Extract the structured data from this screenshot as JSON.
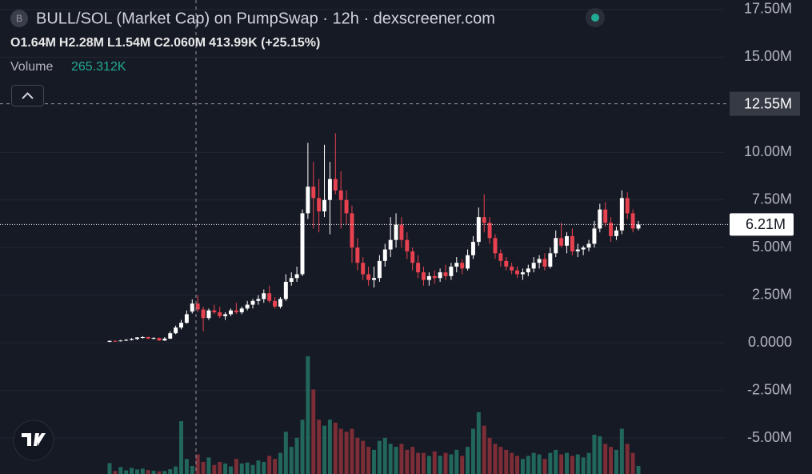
{
  "chart_data": {
    "type": "candlestick",
    "header": {
      "icon": "B",
      "title": "BULL/SOL (Market Cap) on PumpSwap · 12h · dexscreener.com",
      "ohlc": [
        {
          "key": "O",
          "value": "1.64M"
        },
        {
          "key": "H",
          "value": "2.28M"
        },
        {
          "key": "L",
          "value": "1.54M"
        },
        {
          "key": "C",
          "value": "2.060M"
        }
      ],
      "change": "413.99K (+25.15%)",
      "volume_label": "Volume",
      "volume_value": "265.312K"
    },
    "ylim": [
      -6.89,
      18.0
    ],
    "yticks": [
      {
        "value": 17.5,
        "label": "17.50M"
      },
      {
        "value": 15,
        "label": "15.00M"
      },
      {
        "value": 10,
        "label": "10.00M"
      },
      {
        "value": 7.5,
        "label": "7.50M"
      },
      {
        "value": 5,
        "label": "5.00M"
      },
      {
        "value": 2.5,
        "label": "2.50M"
      },
      {
        "value": 0,
        "label": "0.0000"
      },
      {
        "value": -2.5,
        "label": "-2.50M"
      },
      {
        "value": -5,
        "label": "-5.00M"
      }
    ],
    "grid": true,
    "crosshair": {
      "value": 12.55,
      "label": "12.55M"
    },
    "last_price": {
      "value": 6.21,
      "label": "6.21M"
    },
    "up_color": "#ffffff",
    "down_color": "#e8414f",
    "volume_up_color": "#22675b",
    "volume_down_color": "#7c2d36",
    "ohlc": [
      [
        0.05,
        0.12,
        0.03,
        0.1
      ],
      [
        0.1,
        0.13,
        0.06,
        0.08
      ],
      [
        0.08,
        0.15,
        0.07,
        0.12
      ],
      [
        0.12,
        0.2,
        0.1,
        0.15
      ],
      [
        0.15,
        0.25,
        0.12,
        0.2
      ],
      [
        0.2,
        0.3,
        0.15,
        0.28
      ],
      [
        0.28,
        0.35,
        0.22,
        0.3
      ],
      [
        0.3,
        0.32,
        0.2,
        0.22
      ],
      [
        0.22,
        0.3,
        0.18,
        0.25
      ],
      [
        0.25,
        0.28,
        0.1,
        0.12
      ],
      [
        0.12,
        0.3,
        0.1,
        0.22
      ],
      [
        0.22,
        0.6,
        0.2,
        0.5
      ],
      [
        0.5,
        0.9,
        0.45,
        0.8
      ],
      [
        0.8,
        1.2,
        0.7,
        1.05
      ],
      [
        1.05,
        1.7,
        1.0,
        1.5
      ],
      [
        1.64,
        2.28,
        1.54,
        2.06
      ],
      [
        2.06,
        2.5,
        1.6,
        1.75
      ],
      [
        1.75,
        1.9,
        0.6,
        1.3
      ],
      [
        1.3,
        1.8,
        1.2,
        1.7
      ],
      [
        1.7,
        2.0,
        1.5,
        1.6
      ],
      [
        1.6,
        1.9,
        1.3,
        1.4
      ],
      [
        1.4,
        1.6,
        1.2,
        1.5
      ],
      [
        1.5,
        1.8,
        1.4,
        1.7
      ],
      [
        1.7,
        2.1,
        1.5,
        1.6
      ],
      [
        1.6,
        1.9,
        1.5,
        1.8
      ],
      [
        1.8,
        2.2,
        1.7,
        2.0
      ],
      [
        2.0,
        2.3,
        1.8,
        2.2
      ],
      [
        2.2,
        2.5,
        2.0,
        2.3
      ],
      [
        2.3,
        2.8,
        2.1,
        2.6
      ],
      [
        2.6,
        3.0,
        2.1,
        2.2
      ],
      [
        2.2,
        2.4,
        1.8,
        1.9
      ],
      [
        1.9,
        2.4,
        1.8,
        2.3
      ],
      [
        2.3,
        3.6,
        2.2,
        3.2
      ],
      [
        3.2,
        3.7,
        3.0,
        3.4
      ],
      [
        3.4,
        4.0,
        3.2,
        3.6
      ],
      [
        3.6,
        7.0,
        3.5,
        6.8
      ],
      [
        6.8,
        10.5,
        6.5,
        8.2
      ],
      [
        8.2,
        9.5,
        6.0,
        7.6
      ],
      [
        7.6,
        8.6,
        5.8,
        6.9
      ],
      [
        6.9,
        10.4,
        6.6,
        7.5
      ],
      [
        7.5,
        9.5,
        5.7,
        8.6
      ],
      [
        8.6,
        11.0,
        7.8,
        8.0
      ],
      [
        8.0,
        9.0,
        6.0,
        7.5
      ],
      [
        7.5,
        8.0,
        6.2,
        6.8
      ],
      [
        6.8,
        7.2,
        4.2,
        5.0
      ],
      [
        5.0,
        5.5,
        3.8,
        4.2
      ],
      [
        4.2,
        4.5,
        3.3,
        3.6
      ],
      [
        3.6,
        4.0,
        3.0,
        3.3
      ],
      [
        3.3,
        4.0,
        2.9,
        3.4
      ],
      [
        3.4,
        4.6,
        3.2,
        4.3
      ],
      [
        4.3,
        5.2,
        4.0,
        4.9
      ],
      [
        4.9,
        6.6,
        4.5,
        5.4
      ],
      [
        5.4,
        6.8,
        5.0,
        6.2
      ],
      [
        6.2,
        6.6,
        5.0,
        5.4
      ],
      [
        5.4,
        5.8,
        4.4,
        4.8
      ],
      [
        4.8,
        5.0,
        3.8,
        4.2
      ],
      [
        4.2,
        4.6,
        3.4,
        3.7
      ],
      [
        3.7,
        4.0,
        3.0,
        3.3
      ],
      [
        3.3,
        3.7,
        3.0,
        3.5
      ],
      [
        3.5,
        3.8,
        3.1,
        3.4
      ],
      [
        3.4,
        3.9,
        3.2,
        3.7
      ],
      [
        3.7,
        4.1,
        3.3,
        3.5
      ],
      [
        3.5,
        4.2,
        3.3,
        4.0
      ],
      [
        4.0,
        4.5,
        3.7,
        4.2
      ],
      [
        4.2,
        4.4,
        3.6,
        3.9
      ],
      [
        3.9,
        4.9,
        3.8,
        4.6
      ],
      [
        4.6,
        5.6,
        4.4,
        5.3
      ],
      [
        5.3,
        7.1,
        5.1,
        6.6
      ],
      [
        6.6,
        7.8,
        5.8,
        6.3
      ],
      [
        6.3,
        6.6,
        5.2,
        5.5
      ],
      [
        5.5,
        5.7,
        4.4,
        4.7
      ],
      [
        4.7,
        4.9,
        4.0,
        4.3
      ],
      [
        4.3,
        4.5,
        3.8,
        4.0
      ],
      [
        4.0,
        4.2,
        3.6,
        3.8
      ],
      [
        3.8,
        4.0,
        3.4,
        3.6
      ],
      [
        3.6,
        3.9,
        3.3,
        3.7
      ],
      [
        3.7,
        4.1,
        3.5,
        3.9
      ],
      [
        3.9,
        4.5,
        3.7,
        4.2
      ],
      [
        4.2,
        4.6,
        3.9,
        4.4
      ],
      [
        4.4,
        4.7,
        3.8,
        4.0
      ],
      [
        4.0,
        5.0,
        3.9,
        4.7
      ],
      [
        4.7,
        5.9,
        4.5,
        5.5
      ],
      [
        5.5,
        6.3,
        5.0,
        5.1
      ],
      [
        5.1,
        5.8,
        4.7,
        5.6
      ],
      [
        5.6,
        6.0,
        4.6,
        4.8
      ],
      [
        4.8,
        5.2,
        4.5,
        4.9
      ],
      [
        4.9,
        5.1,
        4.6,
        5.0
      ],
      [
        5.0,
        5.4,
        4.8,
        5.2
      ],
      [
        5.2,
        6.4,
        5.0,
        6.0
      ],
      [
        6.0,
        7.3,
        5.8,
        7.0
      ],
      [
        7.0,
        7.4,
        6.1,
        6.3
      ],
      [
        6.3,
        6.6,
        5.3,
        5.6
      ],
      [
        5.6,
        6.1,
        5.4,
        5.9
      ],
      [
        5.9,
        8.0,
        5.7,
        7.6
      ],
      [
        7.6,
        7.9,
        6.5,
        6.8
      ],
      [
        6.8,
        7.0,
        5.8,
        6.0
      ],
      [
        6.0,
        6.4,
        5.9,
        6.21
      ]
    ],
    "volume": [
      360,
      100,
      230,
      120,
      200,
      150,
      180,
      130,
      110,
      90,
      100,
      160,
      250,
      1750,
      500,
      265.312,
      650,
      400,
      550,
      300,
      400,
      350,
      250,
      500,
      350,
      380,
      300,
      450,
      400,
      600,
      500,
      700,
      1400,
      900,
      1200,
      1800,
      3900,
      2800,
      1800,
      1600,
      1800,
      1700,
      1500,
      1400,
      1500,
      1200,
      1100,
      900,
      800,
      1100,
      1200,
      1000,
      900,
      1000,
      800,
      900,
      700,
      700,
      600,
      750,
      600,
      700,
      650,
      800,
      600,
      900,
      1500,
      2050,
      1600,
      1200,
      1000,
      900,
      800,
      700,
      600,
      500,
      600,
      700,
      650,
      500,
      700,
      800,
      650,
      700,
      600,
      650,
      550,
      700,
      1300,
      1250,
      1000,
      900,
      800,
      1500,
      1000,
      700,
      265
    ]
  }
}
